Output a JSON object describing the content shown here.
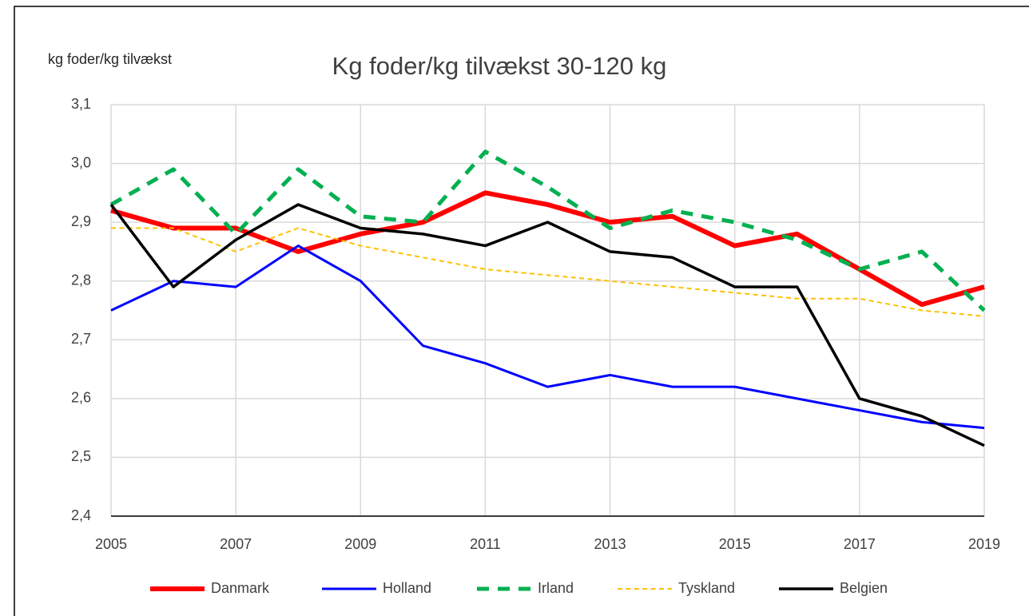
{
  "chart_data": {
    "type": "line",
    "title": "Kg foder/kg tilvækst 30-120 kg",
    "ylabel": "kg foder/kg tilvækst",
    "x": [
      2005,
      2006,
      2007,
      2008,
      2009,
      2010,
      2011,
      2012,
      2013,
      2014,
      2015,
      2016,
      2017,
      2018,
      2019
    ],
    "xlim": [
      2005,
      2019
    ],
    "xticks": [
      2005,
      2007,
      2009,
      2011,
      2013,
      2015,
      2017,
      2019
    ],
    "ylim": [
      2.4,
      3.1
    ],
    "yticks": [
      {
        "value": 2.4,
        "label": "2,4"
      },
      {
        "value": 2.5,
        "label": "2,5"
      },
      {
        "value": 2.6,
        "label": "2,6"
      },
      {
        "value": 2.7,
        "label": "2,7"
      },
      {
        "value": 2.8,
        "label": "2,8"
      },
      {
        "value": 2.9,
        "label": "2,9"
      },
      {
        "value": 3.0,
        "label": "3,0"
      },
      {
        "value": 3.1,
        "label": "3,1"
      }
    ],
    "grid": true,
    "legend": "bottom",
    "series": [
      {
        "name": "Danmark",
        "color": "#ff0000",
        "width": 6,
        "dash": "solid",
        "values": [
          2.92,
          2.89,
          2.89,
          2.85,
          2.88,
          2.9,
          2.95,
          2.93,
          2.9,
          2.91,
          2.86,
          2.88,
          2.82,
          2.76,
          2.79
        ]
      },
      {
        "name": "Holland",
        "color": "#0000ff",
        "width": 3,
        "dash": "solid",
        "values": [
          2.75,
          2.8,
          2.79,
          2.86,
          2.8,
          2.69,
          2.66,
          2.62,
          2.64,
          2.62,
          2.62,
          2.6,
          2.58,
          2.56,
          2.55
        ]
      },
      {
        "name": "Irland",
        "color": "#00b050",
        "width": 5,
        "dash": "dashed",
        "values": [
          2.93,
          2.99,
          2.88,
          2.99,
          2.91,
          2.9,
          3.02,
          2.96,
          2.89,
          2.92,
          2.9,
          2.87,
          2.82,
          2.85,
          2.75
        ]
      },
      {
        "name": "Tyskland",
        "color": "#ffc000",
        "width": 2,
        "dash": "dashed",
        "values": [
          2.89,
          2.89,
          2.85,
          2.89,
          2.86,
          2.84,
          2.82,
          2.81,
          2.8,
          2.79,
          2.78,
          2.77,
          2.77,
          2.75,
          2.74
        ]
      },
      {
        "name": "Belgien",
        "color": "#000000",
        "width": 3.5,
        "dash": "solid",
        "values": [
          2.93,
          2.79,
          2.87,
          2.93,
          2.89,
          2.88,
          2.86,
          2.9,
          2.85,
          2.84,
          2.79,
          2.79,
          2.6,
          2.57,
          2.52
        ]
      }
    ]
  }
}
